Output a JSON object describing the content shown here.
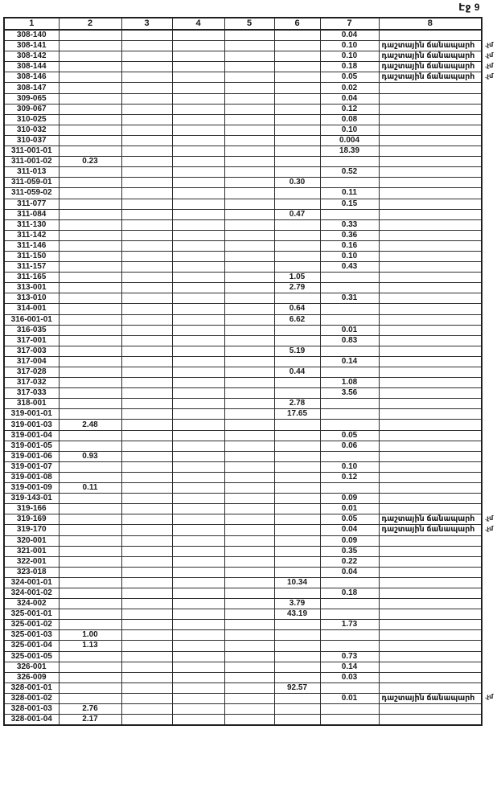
{
  "page": {
    "label": "Էջ 9"
  },
  "table": {
    "headers": [
      "1",
      "2",
      "3",
      "4",
      "5",
      "6",
      "7",
      "8"
    ],
    "land_type_text": "դաշտային ճանապարհ",
    "margin_note": ".չմ",
    "rows": [
      [
        "308-140",
        "",
        "",
        "",
        "",
        "",
        "0.04",
        "",
        ""
      ],
      [
        "308-141",
        "",
        "",
        "",
        "",
        "",
        "0.10",
        "դաշտային ճանապարհ",
        ".չմ"
      ],
      [
        "308-142",
        "",
        "",
        "",
        "",
        "",
        "0.10",
        "դաշտային ճանապարհ",
        ".չմ"
      ],
      [
        "308-144",
        "",
        "",
        "",
        "",
        "",
        "0.18",
        "դաշտային ճանապարհ",
        ".չմ"
      ],
      [
        "308-146",
        "",
        "",
        "",
        "",
        "",
        "0.05",
        "դաշտային ճանապարհ",
        ".չմ"
      ],
      [
        "308-147",
        "",
        "",
        "",
        "",
        "",
        "0.02",
        "",
        ""
      ],
      [
        "309-065",
        "",
        "",
        "",
        "",
        "",
        "0.04",
        "",
        ""
      ],
      [
        "309-067",
        "",
        "",
        "",
        "",
        "",
        "0.12",
        "",
        ""
      ],
      [
        "310-025",
        "",
        "",
        "",
        "",
        "",
        "0.08",
        "",
        ""
      ],
      [
        "310-032",
        "",
        "",
        "",
        "",
        "",
        "0.10",
        "",
        ""
      ],
      [
        "310-037",
        "",
        "",
        "",
        "",
        "",
        "0.004",
        "",
        ""
      ],
      [
        "311-001-01",
        "",
        "",
        "",
        "",
        "",
        "18.39",
        "",
        ""
      ],
      [
        "311-001-02",
        "0.23",
        "",
        "",
        "",
        "",
        "",
        "",
        ""
      ],
      [
        "311-013",
        "",
        "",
        "",
        "",
        "",
        "0.52",
        "",
        ""
      ],
      [
        "311-059-01",
        "",
        "",
        "",
        "",
        "0.30",
        "",
        "",
        ""
      ],
      [
        "311-059-02",
        "",
        "",
        "",
        "",
        "",
        "0.11",
        "",
        ""
      ],
      [
        "311-077",
        "",
        "",
        "",
        "",
        "",
        "0.15",
        "",
        ""
      ],
      [
        "311-084",
        "",
        "",
        "",
        "",
        "0.47",
        "",
        "",
        ""
      ],
      [
        "311-130",
        "",
        "",
        "",
        "",
        "",
        "0.33",
        "",
        ""
      ],
      [
        "311-142",
        "",
        "",
        "",
        "",
        "",
        "0.36",
        "",
        ""
      ],
      [
        "311-146",
        "",
        "",
        "",
        "",
        "",
        "0.16",
        "",
        ""
      ],
      [
        "311-150",
        "",
        "",
        "",
        "",
        "",
        "0.10",
        "",
        ""
      ],
      [
        "311-157",
        "",
        "",
        "",
        "",
        "",
        "0.43",
        "",
        ""
      ],
      [
        "311-165",
        "",
        "",
        "",
        "",
        "1.05",
        "",
        "",
        ""
      ],
      [
        "313-001",
        "",
        "",
        "",
        "",
        "2.79",
        "",
        "",
        ""
      ],
      [
        "313-010",
        "",
        "",
        "",
        "",
        "",
        "0.31",
        "",
        ""
      ],
      [
        "314-001",
        "",
        "",
        "",
        "",
        "0.64",
        "",
        "",
        ""
      ],
      [
        "316-001-01",
        "",
        "",
        "",
        "",
        "6.62",
        "",
        "",
        ""
      ],
      [
        "316-035",
        "",
        "",
        "",
        "",
        "",
        "0.01",
        "",
        ""
      ],
      [
        "317-001",
        "",
        "",
        "",
        "",
        "",
        "0.83",
        "",
        ""
      ],
      [
        "317-003",
        "",
        "",
        "",
        "",
        "5.19",
        "",
        "",
        ""
      ],
      [
        "317-004",
        "",
        "",
        "",
        "",
        "",
        "0.14",
        "",
        ""
      ],
      [
        "317-028",
        "",
        "",
        "",
        "",
        "0.44",
        "",
        "",
        ""
      ],
      [
        "317-032",
        "",
        "",
        "",
        "",
        "",
        "1.08",
        "",
        ""
      ],
      [
        "317-033",
        "",
        "",
        "",
        "",
        "",
        "3.56",
        "",
        ""
      ],
      [
        "318-001",
        "",
        "",
        "",
        "",
        "2.78",
        "",
        "",
        ""
      ],
      [
        "319-001-01",
        "",
        "",
        "",
        "",
        "17.65",
        "",
        "",
        ""
      ],
      [
        "319-001-03",
        "2.48",
        "",
        "",
        "",
        "",
        "",
        "",
        ""
      ],
      [
        "319-001-04",
        "",
        "",
        "",
        "",
        "",
        "0.05",
        "",
        ""
      ],
      [
        "319-001-05",
        "",
        "",
        "",
        "",
        "",
        "0.06",
        "",
        ""
      ],
      [
        "319-001-06",
        "0.93",
        "",
        "",
        "",
        "",
        "",
        "",
        ""
      ],
      [
        "319-001-07",
        "",
        "",
        "",
        "",
        "",
        "0.10",
        "",
        ""
      ],
      [
        "319-001-08",
        "",
        "",
        "",
        "",
        "",
        "0.12",
        "",
        ""
      ],
      [
        "319-001-09",
        "0.11",
        "",
        "",
        "",
        "",
        "",
        "",
        ""
      ],
      [
        "319-143-01",
        "",
        "",
        "",
        "",
        "",
        "0.09",
        "",
        ""
      ],
      [
        "319-166",
        "",
        "",
        "",
        "",
        "",
        "0.01",
        "",
        ""
      ],
      [
        "319-169",
        "",
        "",
        "",
        "",
        "",
        "0.05",
        "դաշտային ճանապարհ",
        ".չմ"
      ],
      [
        "319-170",
        "",
        "",
        "",
        "",
        "",
        "0.04",
        "դաշտային ճանապարհ",
        ".չմ"
      ],
      [
        "320-001",
        "",
        "",
        "",
        "",
        "",
        "0.09",
        "",
        ""
      ],
      [
        "321-001",
        "",
        "",
        "",
        "",
        "",
        "0.35",
        "",
        ""
      ],
      [
        "322-001",
        "",
        "",
        "",
        "",
        "",
        "0.22",
        "",
        ""
      ],
      [
        "323-018",
        "",
        "",
        "",
        "",
        "",
        "0.04",
        "",
        ""
      ],
      [
        "324-001-01",
        "",
        "",
        "",
        "",
        "10.34",
        "",
        "",
        ""
      ],
      [
        "324-001-02",
        "",
        "",
        "",
        "",
        "",
        "0.18",
        "",
        ""
      ],
      [
        "324-002",
        "",
        "",
        "",
        "",
        "3.79",
        "",
        "",
        ""
      ],
      [
        "325-001-01",
        "",
        "",
        "",
        "",
        "43.19",
        "",
        "",
        ""
      ],
      [
        "325-001-02",
        "",
        "",
        "",
        "",
        "",
        "1.73",
        "",
        ""
      ],
      [
        "325-001-03",
        "1.00",
        "",
        "",
        "",
        "",
        "",
        "",
        ""
      ],
      [
        "325-001-04",
        "1.13",
        "",
        "",
        "",
        "",
        "",
        "",
        ""
      ],
      [
        "325-001-05",
        "",
        "",
        "",
        "",
        "",
        "0.73",
        "",
        ""
      ],
      [
        "326-001",
        "",
        "",
        "",
        "",
        "",
        "0.14",
        "",
        ""
      ],
      [
        "326-009",
        "",
        "",
        "",
        "",
        "",
        "0.03",
        "",
        ""
      ],
      [
        "328-001-01",
        "",
        "",
        "",
        "",
        "92.57",
        "",
        "",
        ""
      ],
      [
        "328-001-02",
        "",
        "",
        "",
        "",
        "",
        "0.01",
        "դաշտային ճանապարհ",
        ".չմ"
      ],
      [
        "328-001-03",
        "2.76",
        "",
        "",
        "",
        "",
        "",
        "",
        ""
      ],
      [
        "328-001-04",
        "2.17",
        "",
        "",
        "",
        "",
        "",
        "",
        ""
      ]
    ]
  }
}
